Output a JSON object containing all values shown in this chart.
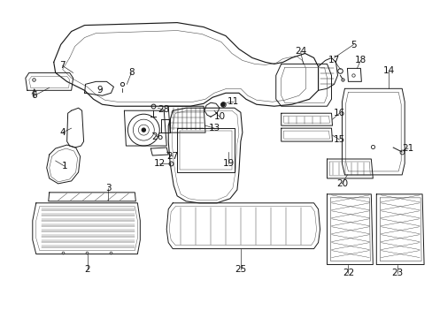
{
  "bg_color": "#ffffff",
  "fig_width": 4.89,
  "fig_height": 3.6,
  "dpi": 100,
  "font_size": 7.5,
  "line_color": "#1a1a1a",
  "text_color": "#111111",
  "lw": 0.7
}
